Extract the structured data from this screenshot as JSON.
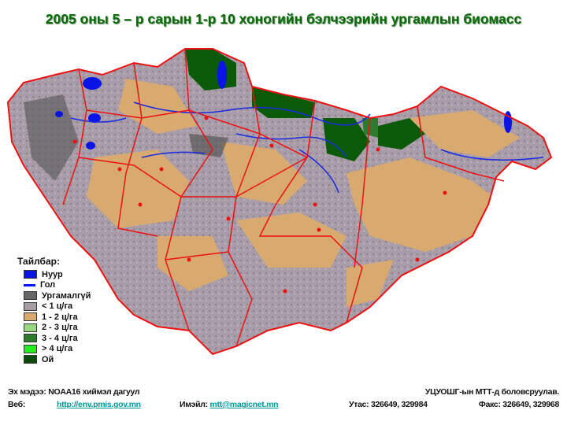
{
  "title": "2005 оны 5 – р сарын 1-р 10 хоногийн бэлчээрийн ургамлын биомасс",
  "legend": {
    "title": "Тайлбар:",
    "items": [
      {
        "label": "Нуур",
        "color": "#0a14e6",
        "kind": "box"
      },
      {
        "label": "Гол",
        "color": "#0018ff",
        "kind": "line"
      },
      {
        "label": "Ургамалгүй",
        "color": "#666666",
        "kind": "box"
      },
      {
        "label": "< 1 ц/га",
        "color": "#a89ca8",
        "kind": "box"
      },
      {
        "label": "1 - 2 ц/га",
        "color": "#d8aa70",
        "kind": "box"
      },
      {
        "label": "2 - 3 ц/га",
        "color": "#98d880",
        "kind": "box"
      },
      {
        "label": "3 - 4 ц/га",
        "color": "#2e7a2e",
        "kind": "box"
      },
      {
        "label": "> 4 ц/га",
        "color": "#22ee22",
        "kind": "box"
      },
      {
        "label": "Ой",
        "color": "#0a4a0a",
        "kind": "box"
      }
    ]
  },
  "footer": {
    "source": "Эх мэдээ: NOAA16 хиймэл дагуул",
    "prepared": "УЦУОШГ-ын МТТ-д боловсруулав.",
    "web_label": "Веб:",
    "web_url": "http://env.pmis.gov.mn",
    "email_label": "Имэйл:",
    "email": "mtt@magicnet.mn",
    "phone": "Утас: 326649, 329984",
    "fax": "Факс: 326649, 329968"
  },
  "colors": {
    "border": "#ee1111",
    "river": "#1a2ae0",
    "center": "#ee1111"
  }
}
